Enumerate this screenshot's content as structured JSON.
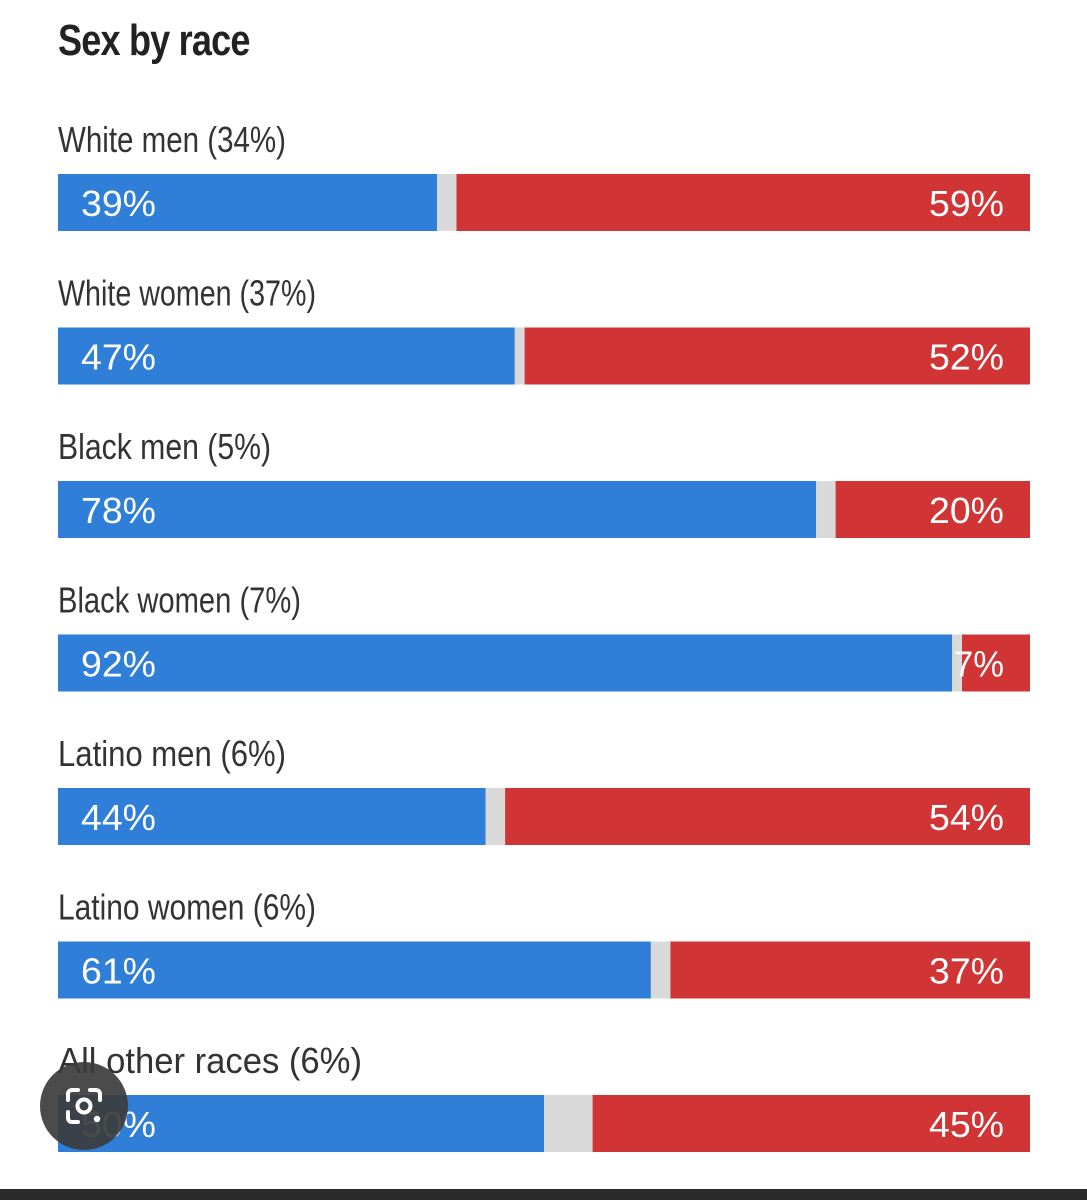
{
  "chart_data": {
    "type": "bar",
    "stacked": true,
    "orientation": "horizontal",
    "title": "Sex by race",
    "categories": [
      "White men (34%)",
      "White women (37%)",
      "Black men (5%)",
      "Black women (7%)",
      "Latino men (6%)",
      "Latino women (6%)",
      "All other races (6%)"
    ],
    "series": [
      {
        "values": [
          39,
          47,
          78,
          92,
          44,
          61,
          50
        ],
        "labels": [
          "39%",
          "47%",
          "78%",
          "92%",
          "44%",
          "61%",
          "50%"
        ],
        "color": "#2f7fd8"
      },
      {
        "values": [
          2,
          1,
          2,
          1,
          2,
          2,
          5
        ],
        "labels": [
          "",
          "",
          "",
          "",
          "",
          "",
          ""
        ],
        "color": "#d9d9d9"
      },
      {
        "values": [
          59,
          52,
          20,
          7,
          54,
          37,
          45
        ],
        "labels": [
          "59%",
          "52%",
          "20%",
          "7%",
          "54%",
          "37%",
          "45%"
        ],
        "color": "#d03434"
      }
    ],
    "xlim": [
      0,
      100
    ],
    "grid": false,
    "legend": "none"
  },
  "overlay": {
    "lens_icon": "google-lens-icon"
  }
}
